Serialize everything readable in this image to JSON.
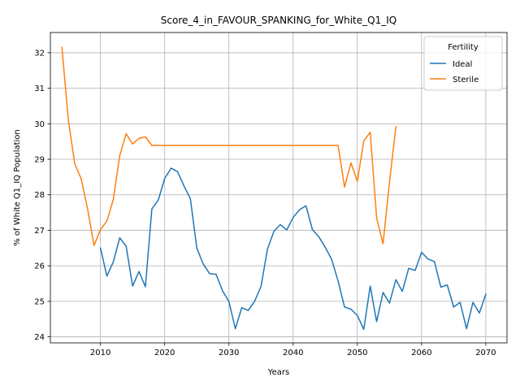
{
  "chart_data": {
    "type": "line",
    "title": "Score_4_in_FAVOUR_SPANKING_for_White_Q1_IQ",
    "xlabel": "Years",
    "ylabel": "% of White Q1_IQ Population",
    "xlim": [
      2002.2,
      2073.3
    ],
    "ylim": [
      23.83,
      32.57
    ],
    "xticks": [
      2010,
      2020,
      2030,
      2040,
      2050,
      2060,
      2070
    ],
    "yticks": [
      24,
      25,
      26,
      27,
      28,
      29,
      30,
      31,
      32
    ],
    "grid": true,
    "legend": {
      "title": "Fertility",
      "position": "upper right"
    },
    "series": [
      {
        "name": "Ideal",
        "color": "#1f77b4",
        "x": [
          2010,
          2011,
          2012,
          2013,
          2014,
          2015,
          2016,
          2017,
          2018,
          2019,
          2020,
          2021,
          2022,
          2023,
          2024,
          2025,
          2026,
          2027,
          2028,
          2029,
          2030,
          2031,
          2032,
          2033,
          2034,
          2035,
          2036,
          2037,
          2038,
          2039,
          2040,
          2041,
          2042,
          2043,
          2044,
          2045,
          2046,
          2047,
          2048,
          2049,
          2050,
          2051,
          2052,
          2053,
          2054,
          2055,
          2056,
          2057,
          2058,
          2059,
          2060,
          2061,
          2062,
          2063,
          2064,
          2065,
          2066,
          2067,
          2068,
          2069,
          2070
        ],
        "values": [
          26.5,
          25.71,
          26.11,
          26.79,
          26.55,
          25.43,
          25.84,
          25.41,
          27.6,
          27.85,
          28.46,
          28.75,
          28.65,
          28.25,
          27.89,
          26.5,
          26.05,
          25.78,
          25.76,
          25.3,
          24.99,
          24.23,
          24.82,
          24.74,
          25.0,
          25.42,
          26.47,
          26.97,
          27.16,
          27.01,
          27.36,
          27.58,
          27.69,
          27.02,
          26.82,
          26.52,
          26.18,
          25.57,
          24.84,
          24.78,
          24.6,
          24.21,
          25.43,
          24.43,
          25.25,
          24.95,
          25.61,
          25.28,
          25.93,
          25.87,
          26.38,
          26.19,
          26.12,
          25.4,
          25.46,
          24.84,
          24.97,
          24.23,
          24.97,
          24.67,
          25.2
        ]
      },
      {
        "name": "Sterile",
        "color": "#ff7f0e",
        "x": [
          2004,
          2005,
          2006,
          2007,
          2008,
          2009,
          2010,
          2011,
          2012,
          2013,
          2014,
          2015,
          2016,
          2017,
          2018,
          2019,
          2020,
          2021,
          2022,
          2023,
          2024,
          2025,
          2026,
          2027,
          2028,
          2029,
          2030,
          2031,
          2032,
          2033,
          2034,
          2035,
          2036,
          2037,
          2038,
          2039,
          2040,
          2041,
          2042,
          2043,
          2044,
          2045,
          2046,
          2047,
          2048,
          2049,
          2050,
          2051,
          2052,
          2053,
          2054,
          2055,
          2056
        ],
        "values": [
          32.15,
          30.1,
          28.87,
          28.45,
          27.6,
          26.57,
          27.02,
          27.26,
          27.87,
          29.1,
          29.72,
          29.43,
          29.59,
          29.63,
          29.39,
          29.39,
          29.39,
          29.39,
          29.39,
          29.39,
          29.39,
          29.39,
          29.39,
          29.39,
          29.39,
          29.39,
          29.39,
          29.39,
          29.39,
          29.39,
          29.39,
          29.39,
          29.39,
          29.39,
          29.39,
          29.39,
          29.39,
          29.39,
          29.39,
          29.39,
          29.39,
          29.39,
          29.39,
          29.39,
          28.22,
          28.9,
          28.38,
          29.52,
          29.76,
          27.35,
          26.62,
          28.35,
          29.92
        ]
      }
    ]
  }
}
